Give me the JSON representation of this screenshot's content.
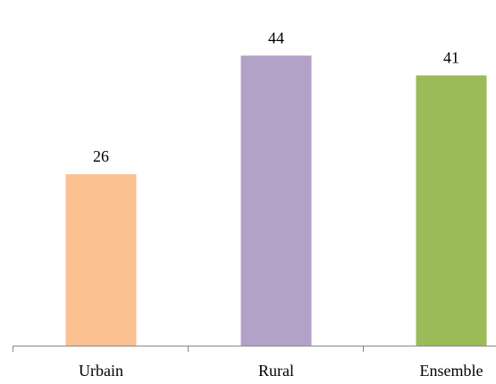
{
  "chart_data": {
    "type": "bar",
    "categories": [
      "Urbain",
      "Rural",
      "Ensemble"
    ],
    "values": [
      26,
      44,
      41
    ],
    "colors": [
      "#FAC090",
      "#B2A2C7",
      "#9BBB59"
    ],
    "ylim": [
      0,
      50
    ],
    "grid": false,
    "show_data_labels": true,
    "title": "",
    "xlabel": "",
    "ylabel": ""
  }
}
